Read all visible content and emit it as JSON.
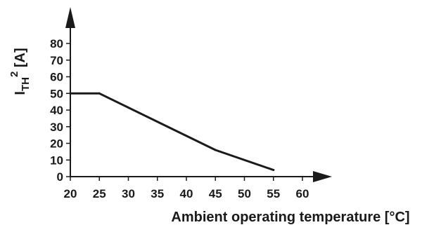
{
  "chart_data": {
    "type": "line",
    "title": "",
    "xlabel": "Ambient operating temperature [°C]",
    "ylabel": {
      "main": "I",
      "subscript": "TH",
      "superscript": "2",
      "unit": " [A]"
    },
    "xlim": [
      20,
      60
    ],
    "ylim": [
      0,
      80
    ],
    "x_ticks": [
      "20",
      "25",
      "30",
      "35",
      "40",
      "45",
      "50",
      "55",
      "60"
    ],
    "y_ticks": [
      "0",
      "10",
      "20",
      "30",
      "40",
      "50",
      "60",
      "70",
      "80"
    ],
    "grid": false,
    "series": [
      {
        "x": [
          20,
          25,
          45,
          55
        ],
        "y": [
          50,
          50,
          16,
          4
        ]
      }
    ],
    "colors": {
      "line": "#1a1a1a",
      "axis": "#1a1a1a"
    }
  }
}
